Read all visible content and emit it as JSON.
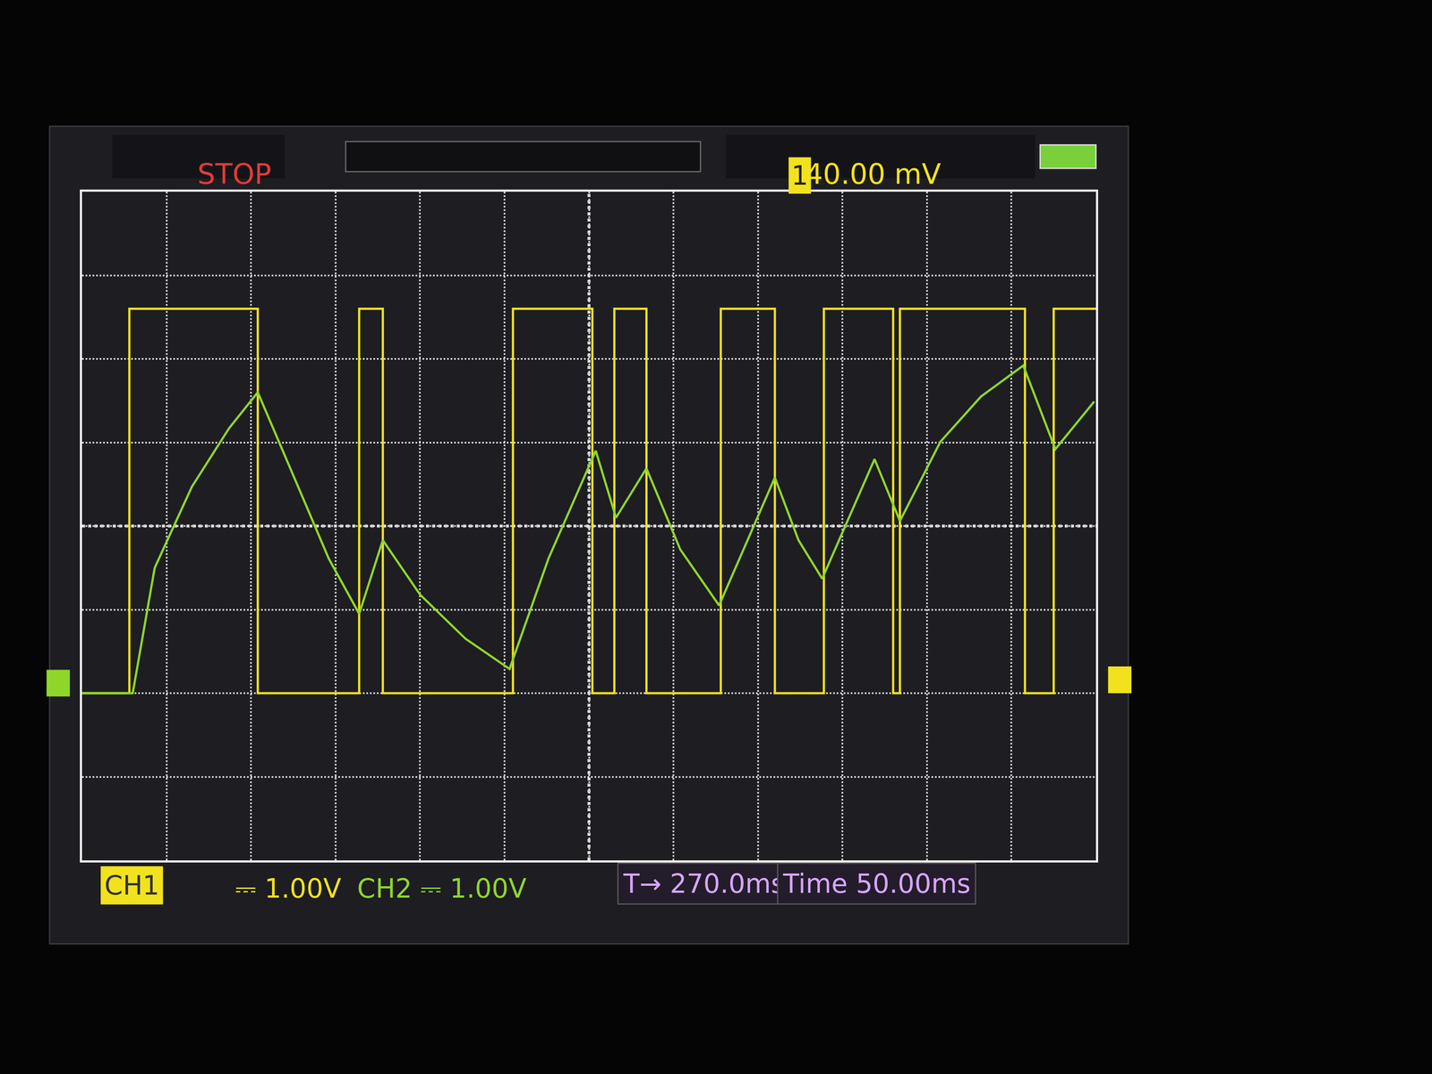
{
  "chart_data": {
    "type": "line",
    "grid": true,
    "tick_labels": false,
    "xlim": [
      0,
      600
    ],
    "xticks": [
      0,
      50,
      100,
      150,
      200,
      250,
      300,
      350,
      400,
      450,
      500,
      550,
      600
    ],
    "ylim": [
      -2,
      6
    ],
    "yticks": [
      -2,
      -1,
      0,
      1,
      2,
      3,
      4,
      5,
      6
    ],
    "series": [
      {
        "color": "#f2e21e",
        "line_style": "solid",
        "x": [
          0,
          28,
          28,
          104,
          104,
          164,
          164,
          178,
          178,
          255,
          255,
          302,
          302,
          315,
          315,
          334,
          334,
          378,
          378,
          410,
          410,
          439,
          439,
          480,
          480,
          484,
          484,
          558,
          558,
          575,
          575,
          600
        ],
        "values": [
          0,
          0,
          4.6,
          4.6,
          0,
          0,
          4.6,
          4.6,
          0,
          0,
          4.6,
          4.6,
          0,
          0,
          4.6,
          4.6,
          0,
          0,
          4.6,
          4.6,
          0,
          0,
          4.6,
          4.6,
          0,
          0,
          4.6,
          4.6,
          0,
          0,
          4.6,
          4.6
        ]
      },
      {
        "color": "#8fd62a",
        "line_style": "solid",
        "x": [
          0,
          30,
          43,
          65,
          87,
          104,
          130,
          146,
          164,
          178,
          200,
          227,
          253,
          276,
          304,
          316,
          334,
          354,
          377,
          410,
          424,
          438,
          469,
          484,
          508,
          532,
          557,
          576,
          599
        ],
        "values": [
          0,
          0,
          1.5,
          2.47,
          3.17,
          3.6,
          2.37,
          1.61,
          0.95,
          1.83,
          1.18,
          0.65,
          0.29,
          1.61,
          2.9,
          2.1,
          2.69,
          1.72,
          1.05,
          2.58,
          1.83,
          1.37,
          2.8,
          2.06,
          3.01,
          3.55,
          3.92,
          2.92,
          3.49
        ]
      }
    ],
    "status": "STOP",
    "trigger": {
      "channel": "1",
      "level": "40.00 mV"
    },
    "footer": {
      "ch1": "CH1",
      "ch1_scale": "⎓ 1.00V",
      "ch2": "CH2 ⎓ 1.00V",
      "trigger_time": "T→ 270.0ms",
      "time_base": "Time 50.00ms"
    }
  }
}
